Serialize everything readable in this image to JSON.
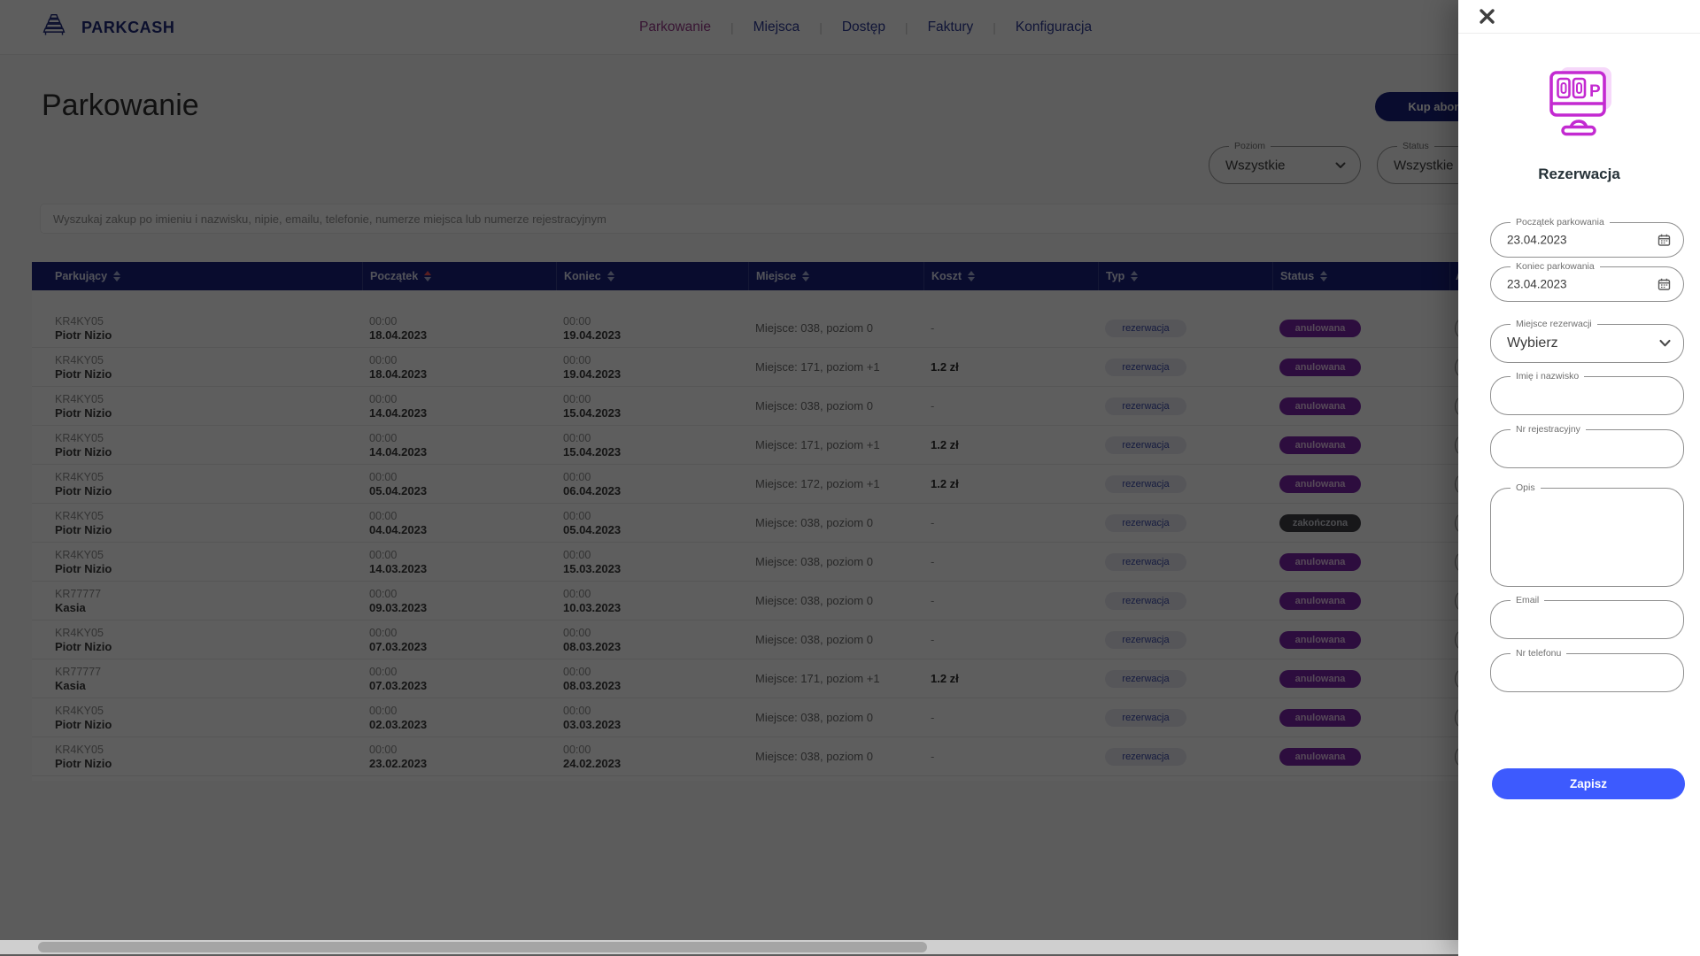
{
  "header": {
    "brand": "PARKCASH",
    "nav": [
      {
        "label": "Parkowanie",
        "active": true
      },
      {
        "label": "Miejsca",
        "active": false
      },
      {
        "label": "Dostęp",
        "active": false
      },
      {
        "label": "Faktury",
        "active": false
      },
      {
        "label": "Konfiguracja",
        "active": false
      }
    ]
  },
  "page": {
    "title": "Parkowanie",
    "buy_button": "Kup abonament"
  },
  "filters": {
    "poziom": {
      "label": "Poziom",
      "value": "Wszystkie"
    },
    "status": {
      "label": "Status",
      "value": "Wszystkie"
    }
  },
  "search": {
    "placeholder": "Wyszukaj zakup po imieniu i nazwisku, nipie, emailu, telefonie, numerze miejsca lub numerze rejestracyjnym"
  },
  "table": {
    "columns": [
      {
        "label": "Parkujący",
        "sortable": true,
        "sort": null
      },
      {
        "label": "Początek",
        "sortable": true,
        "sort": "asc"
      },
      {
        "label": "Koniec",
        "sortable": true,
        "sort": null
      },
      {
        "label": "Miejsce",
        "sortable": true,
        "sort": null
      },
      {
        "label": "Koszt",
        "sortable": true,
        "sort": null
      },
      {
        "label": "Typ",
        "sortable": true,
        "sort": null
      },
      {
        "label": "Status",
        "sortable": true,
        "sort": null
      },
      {
        "label": "Akcje",
        "sortable": false,
        "sort": null
      }
    ],
    "rows": [
      {
        "plate": "KR4KY05",
        "name": "Piotr Nizio",
        "start_time": "00:00",
        "start_date": "18.04.2023",
        "end_time": "00:00",
        "end_date": "19.04.2023",
        "place": "Miejsce: 038, poziom 0",
        "cost": "-",
        "type": "rezerwacja",
        "status": "anulowana",
        "status_kind": "anulowana"
      },
      {
        "plate": "KR4KY05",
        "name": "Piotr Nizio",
        "start_time": "00:00",
        "start_date": "18.04.2023",
        "end_time": "00:00",
        "end_date": "19.04.2023",
        "place": "Miejsce: 171, poziom +1",
        "cost": "1.2 zł",
        "type": "rezerwacja",
        "status": "anulowana",
        "status_kind": "anulowana"
      },
      {
        "plate": "KR4KY05",
        "name": "Piotr Nizio",
        "start_time": "00:00",
        "start_date": "14.04.2023",
        "end_time": "00:00",
        "end_date": "15.04.2023",
        "place": "Miejsce: 038, poziom 0",
        "cost": "-",
        "type": "rezerwacja",
        "status": "anulowana",
        "status_kind": "anulowana"
      },
      {
        "plate": "KR4KY05",
        "name": "Piotr Nizio",
        "start_time": "00:00",
        "start_date": "14.04.2023",
        "end_time": "00:00",
        "end_date": "15.04.2023",
        "place": "Miejsce: 171, poziom +1",
        "cost": "1.2 zł",
        "type": "rezerwacja",
        "status": "anulowana",
        "status_kind": "anulowana"
      },
      {
        "plate": "KR4KY05",
        "name": "Piotr Nizio",
        "start_time": "00:00",
        "start_date": "05.04.2023",
        "end_time": "00:00",
        "end_date": "06.04.2023",
        "place": "Miejsce: 172, poziom +1",
        "cost": "1.2 zł",
        "type": "rezerwacja",
        "status": "anulowana",
        "status_kind": "anulowana"
      },
      {
        "plate": "KR4KY05",
        "name": "Piotr Nizio",
        "start_time": "00:00",
        "start_date": "04.04.2023",
        "end_time": "00:00",
        "end_date": "05.04.2023",
        "place": "Miejsce: 038, poziom 0",
        "cost": "-",
        "type": "rezerwacja",
        "status": "zakończona",
        "status_kind": "zakonczona"
      },
      {
        "plate": "KR4KY05",
        "name": "Piotr Nizio",
        "start_time": "00:00",
        "start_date": "14.03.2023",
        "end_time": "00:00",
        "end_date": "15.03.2023",
        "place": "Miejsce: 038, poziom 0",
        "cost": "-",
        "type": "rezerwacja",
        "status": "anulowana",
        "status_kind": "anulowana"
      },
      {
        "plate": "KR77777",
        "name": "Kasia",
        "start_time": "00:00",
        "start_date": "09.03.2023",
        "end_time": "00:00",
        "end_date": "10.03.2023",
        "place": "Miejsce: 038, poziom 0",
        "cost": "-",
        "type": "rezerwacja",
        "status": "anulowana",
        "status_kind": "anulowana"
      },
      {
        "plate": "KR4KY05",
        "name": "Piotr Nizio",
        "start_time": "00:00",
        "start_date": "07.03.2023",
        "end_time": "00:00",
        "end_date": "08.03.2023",
        "place": "Miejsce: 038, poziom 0",
        "cost": "-",
        "type": "rezerwacja",
        "status": "anulowana",
        "status_kind": "anulowana"
      },
      {
        "plate": "KR77777",
        "name": "Kasia",
        "start_time": "00:00",
        "start_date": "07.03.2023",
        "end_time": "00:00",
        "end_date": "08.03.2023",
        "place": "Miejsce: 171, poziom +1",
        "cost": "1.2 zł",
        "type": "rezerwacja",
        "status": "anulowana",
        "status_kind": "anulowana"
      },
      {
        "plate": "KR4KY05",
        "name": "Piotr Nizio",
        "start_time": "00:00",
        "start_date": "02.03.2023",
        "end_time": "00:00",
        "end_date": "03.03.2023",
        "place": "Miejsce: 038, poziom 0",
        "cost": "-",
        "type": "rezerwacja",
        "status": "anulowana",
        "status_kind": "anulowana"
      },
      {
        "plate": "KR4KY05",
        "name": "Piotr Nizio",
        "start_time": "00:00",
        "start_date": "23.02.2023",
        "end_time": "00:00",
        "end_date": "24.02.2023",
        "place": "Miejsce: 038, poziom 0",
        "cost": "-",
        "type": "rezerwacja",
        "status": "anulowana",
        "status_kind": "anulowana"
      }
    ]
  },
  "drawer": {
    "title": "Rezerwacja",
    "fields": [
      {
        "name": "start-date-field",
        "label": "Początek parkowania",
        "value": "23.04.2023",
        "kind": "date"
      },
      {
        "name": "end-date-field",
        "label": "Koniec parkowania",
        "value": "23.04.2023",
        "kind": "date"
      },
      {
        "name": "spot-select",
        "label": "Miejsce rezerwacji",
        "value": "Wybierz",
        "kind": "select"
      },
      {
        "name": "name-field",
        "label": "Imię i nazwisko",
        "value": "",
        "kind": "text"
      },
      {
        "name": "plate-field",
        "label": "Nr rejestracyjny",
        "value": "",
        "kind": "text"
      },
      {
        "name": "description-field",
        "label": "Opis",
        "value": "",
        "kind": "textarea"
      },
      {
        "name": "email-field",
        "label": "Email",
        "value": "",
        "kind": "text"
      },
      {
        "name": "phone-field",
        "label": "Nr telefonu",
        "value": "",
        "kind": "text"
      }
    ],
    "save_label": "Zapisz"
  },
  "colors": {
    "accent_navy": "#1a237e",
    "accent_magenta": "#c32ad1",
    "save_blue": "#3d5afe",
    "status_anulowana": "#7b24a8",
    "status_zakonczona": "#3f3f46"
  }
}
